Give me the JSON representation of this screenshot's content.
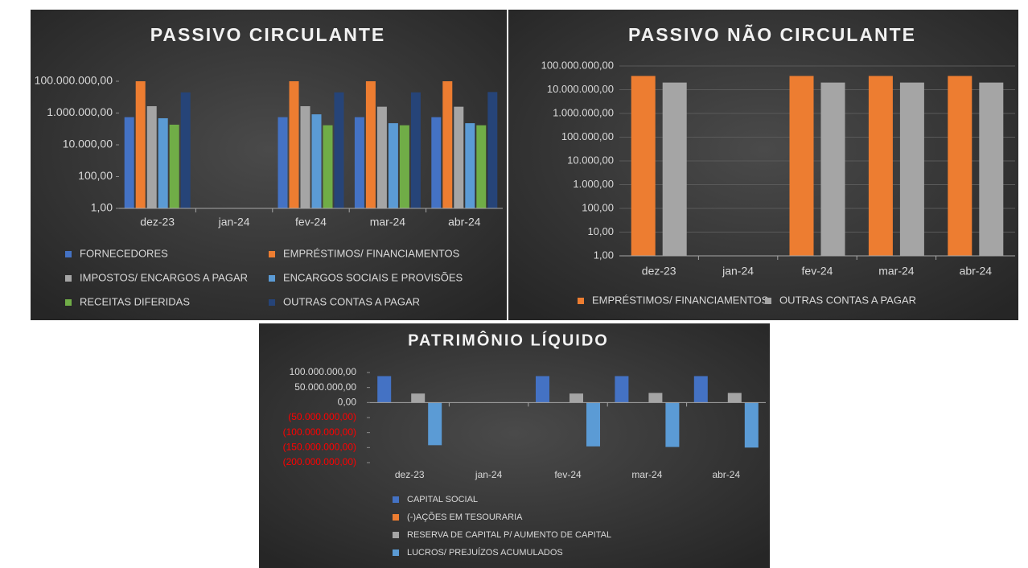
{
  "chart_data": [
    {
      "type": "bar",
      "title": "PASSIVO CIRCULANTE",
      "log_scale": true,
      "grid": false,
      "legend_position": "bottom",
      "legend_columns": 2,
      "categories": [
        "dez-23",
        "jan-24",
        "fev-24",
        "mar-24",
        "abr-24"
      ],
      "ylim": [
        1,
        100000000
      ],
      "yticks": [
        {
          "value": 1,
          "label": "1,00"
        },
        {
          "value": 100,
          "label": "100,00"
        },
        {
          "value": 10000,
          "label": "10.000,00"
        },
        {
          "value": 1000000,
          "label": "1.000.000,00"
        },
        {
          "value": 100000000,
          "label": "100.000.000,00"
        }
      ],
      "series": [
        {
          "name": "FORNECEDORES",
          "color": "#4472c4",
          "values": [
            550000,
            null,
            550000,
            550000,
            550000
          ]
        },
        {
          "name": "EMPRÉSTIMOS/ FINANCIAMENTOS",
          "color": "#ed7d31",
          "values": [
            100000000,
            null,
            100000000,
            100000000,
            100000000
          ]
        },
        {
          "name": "IMPOSTOS/ ENCARGOS A PAGAR",
          "color": "#a5a5a5",
          "values": [
            2700000,
            null,
            2700000,
            2500000,
            2500000
          ]
        },
        {
          "name": "ENCARGOS SOCIAIS E PROVISÕES",
          "color": "#5b9bd5",
          "values": [
            470000,
            null,
            830000,
            230000,
            230000
          ]
        },
        {
          "name": "RECEITAS DIFERIDAS",
          "color": "#70ad47",
          "values": [
            185000,
            null,
            170000,
            170000,
            170000
          ]
        },
        {
          "name": "OUTRAS CONTAS A PAGAR",
          "color": "#264478",
          "values": [
            20000000,
            null,
            20000000,
            20000000,
            21000000
          ]
        }
      ]
    },
    {
      "type": "bar",
      "title": "PASSIVO NÃO CIRCULANTE",
      "log_scale": true,
      "grid": true,
      "legend_position": "bottom",
      "legend_columns": 2,
      "categories": [
        "dez-23",
        "jan-24",
        "fev-24",
        "mar-24",
        "abr-24"
      ],
      "ylim": [
        1,
        100000000
      ],
      "yticks": [
        {
          "value": 1,
          "label": "1,00"
        },
        {
          "value": 10,
          "label": "10,00"
        },
        {
          "value": 100,
          "label": "100,00"
        },
        {
          "value": 1000,
          "label": "1.000,00"
        },
        {
          "value": 10000,
          "label": "10.000,00"
        },
        {
          "value": 100000,
          "label": "100.000,00"
        },
        {
          "value": 1000000,
          "label": "1.000.000,00"
        },
        {
          "value": 10000000,
          "label": "10.000.000,00"
        },
        {
          "value": 100000000,
          "label": "100.000.000,00"
        }
      ],
      "series": [
        {
          "name": "EMPRÉSTIMOS/ FINANCIAMENTOS",
          "color": "#ed7d31",
          "values": [
            38000000,
            null,
            38000000,
            38000000,
            38000000
          ]
        },
        {
          "name": "OUTRAS CONTAS A PAGAR",
          "color": "#a5a5a5",
          "values": [
            20000000,
            null,
            20000000,
            20000000,
            20000000
          ]
        }
      ]
    },
    {
      "type": "bar",
      "title": "PATRIMÔNIO LÍQUIDO",
      "log_scale": false,
      "grid": false,
      "legend_position": "bottom",
      "legend_columns": 1,
      "negative_tick_color": "#ff0000",
      "categories": [
        "dez-23",
        "jan-24",
        "fev-24",
        "mar-24",
        "abr-24"
      ],
      "ylim": [
        -200000000,
        100000000
      ],
      "yticks": [
        {
          "value": 100000000,
          "label": "100.000.000,00"
        },
        {
          "value": 50000000,
          "label": "50.000.000,00"
        },
        {
          "value": 0,
          "label": "0,00"
        },
        {
          "value": -50000000,
          "label": "(50.000.000,00)"
        },
        {
          "value": -100000000,
          "label": "(100.000.000,00)"
        },
        {
          "value": -150000000,
          "label": "(150.000.000,00)"
        },
        {
          "value": -200000000,
          "label": "(200.000.000,00)"
        }
      ],
      "series": [
        {
          "name": "CAPITAL SOCIAL",
          "color": "#4472c4",
          "values": [
            88000000,
            null,
            88000000,
            88000000,
            88000000
          ]
        },
        {
          "name": "(-)AÇÕES EM TESOURARIA",
          "color": "#ed7d31",
          "values": [
            0,
            null,
            0,
            0,
            0
          ]
        },
        {
          "name": "RESERVA DE CAPITAL P/ AUMENTO DE CAPITAL",
          "color": "#a5a5a5",
          "values": [
            30000000,
            null,
            30000000,
            32000000,
            32000000
          ]
        },
        {
          "name": "LUCROS/ PREJUÍZOS ACUMULADOS",
          "color": "#5b9bd5",
          "values": [
            -142000000,
            null,
            -146000000,
            -148000000,
            -150000000
          ]
        }
      ]
    }
  ]
}
